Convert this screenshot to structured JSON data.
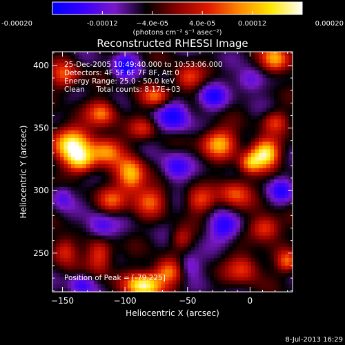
{
  "chart_data": {
    "type": "heatmap",
    "title": "Reconstructed RHESSI Image",
    "xlabel": "Heliocentric X (arcsec)",
    "ylabel": "Heliocentric Y (arcsec)",
    "xlim": [
      -158,
      34
    ],
    "ylim": [
      219,
      411
    ],
    "x_ticks": [
      -150,
      -100,
      -50,
      0
    ],
    "x_tick_labels": [
      "−150",
      "−100",
      "−50",
      "0"
    ],
    "y_ticks": [
      250,
      300,
      350,
      400
    ],
    "y_tick_labels": [
      "250",
      "300",
      "350",
      "400"
    ],
    "colorbar": {
      "range": [
        -0.0002,
        0.0002
      ],
      "tick_values": [
        -0.0002,
        -0.00012,
        -4e-05,
        4e-05,
        0.00012,
        0.0002
      ],
      "tick_labels": [
        "-0.00020",
        "-0.00012",
        "−4.0e-05",
        "4.0e-05",
        "0.00012",
        "0.00020"
      ],
      "unit_label": "(photons cm⁻² s⁻¹ asec⁻²)",
      "colors": [
        "#0000ff",
        "#3a00ff",
        "#7a18c8",
        "#000000",
        "#8a0000",
        "#e01a00",
        "#ff8a00",
        "#ffe800",
        "#ffffff"
      ]
    },
    "annotations": [
      "25-Dec-2005 10:49:40.000 to 10:53:06.000",
      "Detectors: 4F 5F 6F 7F 8F, Att 0",
      "Energy Range: 25.0 - 50.0 keV",
      "Clean     Total counts: 8.17E+03"
    ],
    "peak_label": "Position of Peak = [-79,225]",
    "peak_position": [
      -79,
      225
    ],
    "grid": false,
    "sources": [
      {
        "x": -143,
        "y": 337,
        "sx": 11,
        "sy": 10,
        "amp": 0.00022
      },
      {
        "x": -135,
        "y": 323,
        "sx": 8,
        "sy": 7,
        "amp": 0.00015
      },
      {
        "x": -115,
        "y": 332,
        "sx": 9,
        "sy": 8,
        "amp": 0.00016
      },
      {
        "x": -118,
        "y": 362,
        "sx": 8,
        "sy": 7,
        "amp": 0.00014
      },
      {
        "x": -95,
        "y": 312,
        "sx": 8,
        "sy": 10,
        "amp": 0.00019
      },
      {
        "x": -80,
        "y": 292,
        "sx": 9,
        "sy": 8,
        "amp": 0.00012
      },
      {
        "x": -110,
        "y": 292,
        "sx": 8,
        "sy": 7,
        "amp": 0.00011
      },
      {
        "x": -120,
        "y": 248,
        "sx": 7,
        "sy": 10,
        "amp": 0.00013
      },
      {
        "x": -85,
        "y": 224,
        "sx": 10,
        "sy": 7,
        "amp": 0.00024
      },
      {
        "x": -65,
        "y": 235,
        "sx": 9,
        "sy": 7,
        "amp": 0.00015
      },
      {
        "x": -75,
        "y": 375,
        "sx": 8,
        "sy": 6,
        "amp": 0.00013
      },
      {
        "x": -50,
        "y": 390,
        "sx": 8,
        "sy": 7,
        "amp": 0.00012
      },
      {
        "x": -25,
        "y": 338,
        "sx": 10,
        "sy": 8,
        "amp": 0.00017
      },
      {
        "x": -12,
        "y": 298,
        "sx": 9,
        "sy": 8,
        "amp": 0.00013
      },
      {
        "x": -40,
        "y": 292,
        "sx": 8,
        "sy": 7,
        "amp": 0.00011
      },
      {
        "x": 12,
        "y": 330,
        "sx": 8,
        "sy": 8,
        "amp": 0.00023
      },
      {
        "x": 0,
        "y": 322,
        "sx": 6,
        "sy": 6,
        "amp": 0.00014
      },
      {
        "x": 20,
        "y": 405,
        "sx": 8,
        "sy": 8,
        "amp": 0.00018
      },
      {
        "x": 12,
        "y": 270,
        "sx": 8,
        "sy": 7,
        "amp": 0.00014
      },
      {
        "x": -5,
        "y": 238,
        "sx": 9,
        "sy": 8,
        "amp": 0.00012
      },
      {
        "x": 30,
        "y": 243,
        "sx": 6,
        "sy": 6,
        "amp": 0.00013
      },
      {
        "x": -148,
        "y": 252,
        "sx": 7,
        "sy": 8,
        "amp": 0.00012
      },
      {
        "x": -148,
        "y": 392,
        "sx": 8,
        "sy": 8,
        "amp": 0.00012
      },
      {
        "x": -85,
        "y": 350,
        "sx": 7,
        "sy": 6,
        "amp": 9e-05
      },
      {
        "x": 20,
        "y": 355,
        "sx": 7,
        "sy": 6,
        "amp": 0.0001
      },
      {
        "x": -55,
        "y": 262,
        "sx": 6,
        "sy": 6,
        "amp": 8e-05
      },
      {
        "x": -100,
        "y": 400,
        "sx": 7,
        "sy": 7,
        "amp": -0.00011
      },
      {
        "x": -60,
        "y": 360,
        "sx": 9,
        "sy": 9,
        "amp": -0.00012
      },
      {
        "x": -30,
        "y": 375,
        "sx": 8,
        "sy": 7,
        "amp": -0.0001
      },
      {
        "x": -60,
        "y": 318,
        "sx": 8,
        "sy": 8,
        "amp": -0.0001
      },
      {
        "x": -20,
        "y": 270,
        "sx": 9,
        "sy": 8,
        "amp": -0.00011
      },
      {
        "x": -120,
        "y": 270,
        "sx": 8,
        "sy": 8,
        "amp": -0.0001
      },
      {
        "x": -50,
        "y": 240,
        "sx": 7,
        "sy": 7,
        "amp": -9e-05
      },
      {
        "x": 0,
        "y": 388,
        "sx": 8,
        "sy": 7,
        "amp": -9e-05
      },
      {
        "x": 25,
        "y": 300,
        "sx": 7,
        "sy": 7,
        "amp": -9e-05
      },
      {
        "x": -150,
        "y": 295,
        "sx": 6,
        "sy": 7,
        "amp": -8e-05
      },
      {
        "x": -135,
        "y": 225,
        "sx": 7,
        "sy": 6,
        "amp": -9e-05
      }
    ]
  },
  "footer": {
    "date": "8-Jul-2013 16:29"
  }
}
